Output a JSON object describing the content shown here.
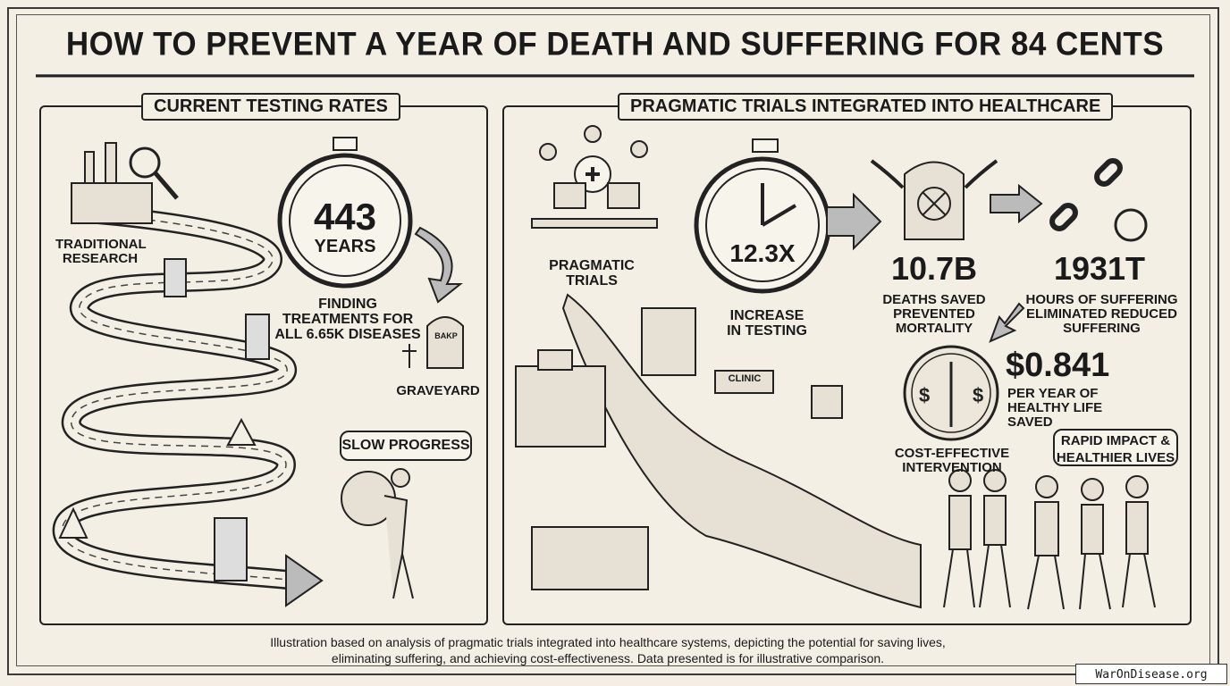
{
  "title": "HOW TO PREVENT A YEAR OF DEATH AND SUFFERING FOR 84 CENTS",
  "left_panel": {
    "header": "CURRENT TESTING RATES",
    "traditional_research": "TRADITIONAL RESEARCH",
    "timer_value": "443",
    "timer_unit": "YEARS",
    "caption": "FINDING TREATMENTS FOR ALL 6.65K DISEASES",
    "gravestone_text": "BAKP",
    "graveyard": "GRAVEYARD",
    "bubble": "SLOW PROGRESS"
  },
  "right_panel": {
    "header": "PRAGMATIC TRIALS INTEGRATED INTO HEALTHCARE",
    "pragmatic_trials": "PRAGMATIC TRIALS",
    "timer_value": "12.3X",
    "timer_caption": "INCREASE IN TESTING",
    "clinic_sign": "CLINIC",
    "deaths_value": "10.7B",
    "deaths_caption": "DEATHS SAVED PREVENTED MORTALITY",
    "suffering_value": "1931T",
    "suffering_caption": "HOURS OF SUFFERING ELIMINATED REDUCED SUFFERING",
    "cost_value": "$0.841",
    "cost_caption": "PER YEAR OF HEALTHY LIFE SAVED",
    "coin_caption": "COST-EFFECTIVE INTERVENTION",
    "bubble": "RAPID IMPACT & HEALTHIER LIVES"
  },
  "footer": "Illustration based on analysis of pragmatic trials integrated into healthcare systems, depicting the potential for saving lives, eliminating suffering, and achieving cost-effectiveness. Data presented is for illustrative comparison.",
  "watermark": "WarOnDisease.org",
  "colors": {
    "paper": "#f3efe4",
    "ink": "#1a1a1a"
  },
  "icons": [
    "factory-icon",
    "magnifier-icon",
    "hourglass-icon",
    "stopwatch-icon",
    "gravestone-icon",
    "warning-icon",
    "caduceus-coin-icon",
    "broken-chain-icon",
    "arrow-icon"
  ]
}
